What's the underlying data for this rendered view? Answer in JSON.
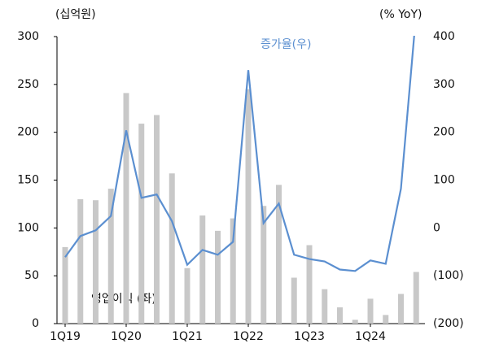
{
  "chart_data": {
    "type": "bar_line",
    "y_label": "(십억원)",
    "y2_label": "(% YoY)",
    "categories": [
      "1Q19",
      null,
      null,
      null,
      "1Q20",
      null,
      null,
      null,
      "1Q21",
      null,
      null,
      null,
      "1Q22",
      null,
      null,
      null,
      "1Q23",
      null,
      null,
      null,
      "1Q24",
      null,
      null,
      null
    ],
    "series": [
      {
        "name": "영업이익 (좌)",
        "type": "bar",
        "color": "#c8c8c8",
        "axis": "y",
        "values": [
          80,
          130,
          129,
          141,
          241,
          209,
          218,
          157,
          58,
          113,
          97,
          110,
          245,
          123,
          145,
          48,
          82,
          36,
          17,
          4,
          26,
          9,
          31,
          54
        ]
      },
      {
        "name": "증가율(우)",
        "type": "line",
        "color": "#5b8fd0",
        "axis": "y2",
        "values": [
          -61,
          -17,
          -5,
          25,
          204,
          63,
          70,
          14,
          -77,
          -46,
          -56,
          -29,
          330,
          10,
          51,
          -56,
          -65,
          -70,
          -87,
          -90,
          -68,
          -75,
          82,
          450
        ]
      }
    ],
    "ylim": [
      0,
      300
    ],
    "yticks": [
      0,
      50,
      100,
      150,
      200,
      250,
      300
    ],
    "y2lim": [
      -200,
      400
    ],
    "y2ticks": [
      {
        "value": -200,
        "label": "(200)"
      },
      {
        "value": -100,
        "label": "(100)"
      },
      0,
      100,
      200,
      300,
      400
    ]
  }
}
